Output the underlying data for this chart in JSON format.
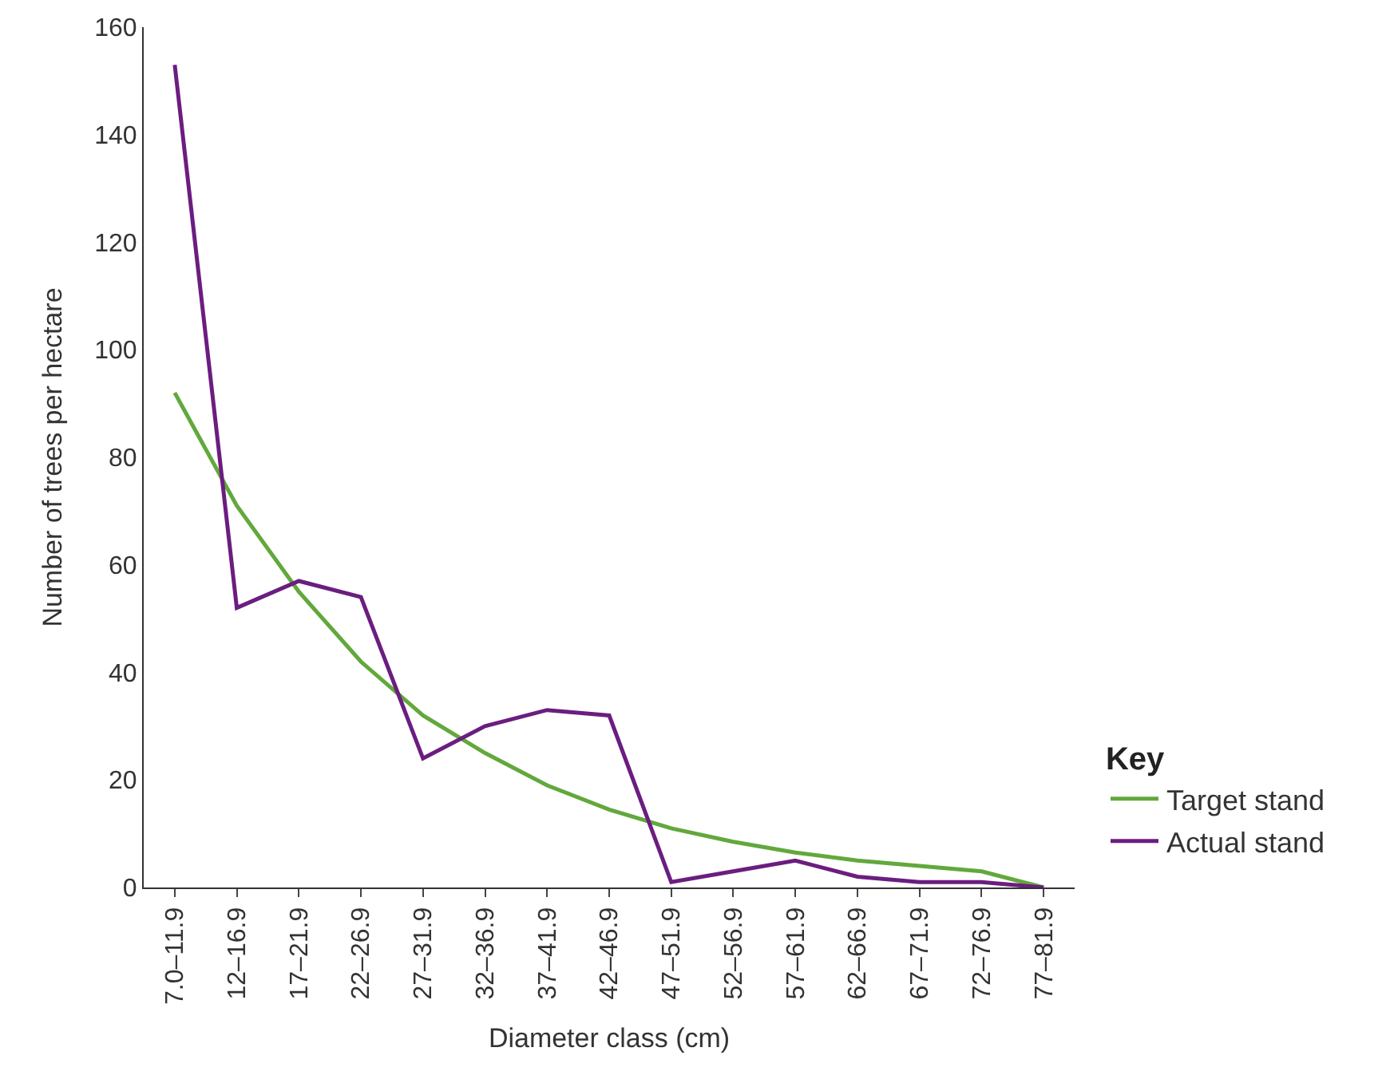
{
  "chart_data": {
    "type": "line",
    "xlabel": "Diameter class (cm)",
    "ylabel": "Number of trees per hectare",
    "legend_title": "Key",
    "legend": "right",
    "categories": [
      "7.0–11.9",
      "12–16.9",
      "17–21.9",
      "22–26.9",
      "27–31.9",
      "32–36.9",
      "37–41.9",
      "42–46.9",
      "47–51.9",
      "52–56.9",
      "57–61.9",
      "62–66.9",
      "67–71.9",
      "72–76.9",
      "77–81.9"
    ],
    "series": [
      {
        "name": "Target stand",
        "color": "#62a83c",
        "values": [
          92,
          71,
          55,
          42,
          32,
          25,
          19,
          14.5,
          11,
          8.5,
          6.5,
          5,
          4,
          3,
          0
        ]
      },
      {
        "name": "Actual stand",
        "color": "#6b1d80",
        "values": [
          153,
          52,
          57,
          54,
          24,
          30,
          33,
          32,
          1,
          3,
          5,
          2,
          1,
          1,
          0
        ]
      }
    ],
    "ylim": [
      0,
      160
    ],
    "yticks": [
      0,
      20,
      40,
      60,
      80,
      100,
      120,
      140,
      160
    ],
    "marker": "none",
    "line_style": "solid"
  }
}
